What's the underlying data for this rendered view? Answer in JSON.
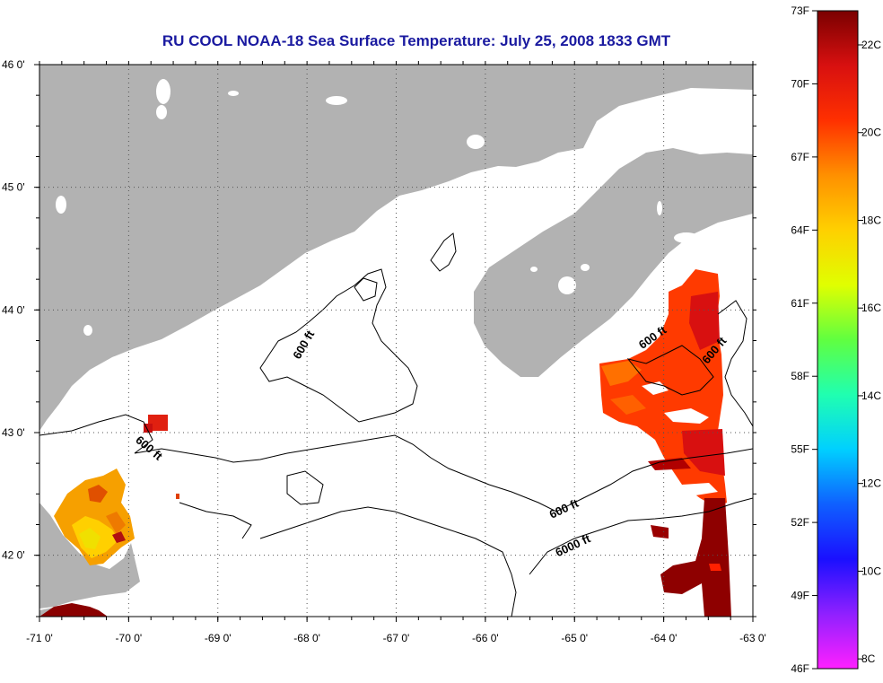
{
  "title": "RU COOL  NOAA-18  Sea Surface Temperature:  July 25, 2008 1833 GMT",
  "map": {
    "lon_range": [
      -71,
      -63
    ],
    "lat_range": [
      41.5,
      46
    ],
    "lon_ticks": [
      {
        "value": -71,
        "label": "-71 0'"
      },
      {
        "value": -70,
        "label": "-70 0'"
      },
      {
        "value": -69,
        "label": "-69 0'"
      },
      {
        "value": -68,
        "label": "-68 0'"
      },
      {
        "value": -67,
        "label": "-67 0'"
      },
      {
        "value": -66,
        "label": "-66 0'"
      },
      {
        "value": -65,
        "label": "-65 0'"
      },
      {
        "value": -64,
        "label": "-64 0'"
      },
      {
        "value": -63,
        "label": "-63 0'"
      }
    ],
    "lat_ticks": [
      {
        "value": 46,
        "label": "46 0'"
      },
      {
        "value": 45,
        "label": "45 0'"
      },
      {
        "value": 44,
        "label": "44 0'"
      },
      {
        "value": 43,
        "label": "43 0'"
      },
      {
        "value": 42,
        "label": "42 0'"
      }
    ],
    "contour_labels": [
      {
        "text": "600 ft",
        "lon": -68.0,
        "lat": 43.7
      },
      {
        "text": "600 ft",
        "lon": -69.8,
        "lat": 42.85
      },
      {
        "text": "600 ft",
        "lon": -64.1,
        "lat": 43.75
      },
      {
        "text": "600 ft",
        "lon": -63.4,
        "lat": 43.65
      },
      {
        "text": "600 ft",
        "lon": -65.1,
        "lat": 42.35
      },
      {
        "text": "6000 ft",
        "lon": -65.0,
        "lat": 42.05
      }
    ],
    "colors": {
      "land": "#b2b2b2",
      "water": "#ffffff",
      "grid": "#666666",
      "title": "#1a1aa0"
    }
  },
  "colorbar": {
    "f_labels": [
      "73F",
      "70F",
      "67F",
      "64F",
      "61F",
      "58F",
      "55F",
      "52F",
      "49F",
      "46F"
    ],
    "c_labels": [
      "22C",
      "20C",
      "18C",
      "16C",
      "14C",
      "12C",
      "10C",
      "8C"
    ],
    "stops": [
      "#ff20ff",
      "#8f20ff",
      "#1a10ff",
      "#0f60ff",
      "#00d0ff",
      "#20ffb0",
      "#60ff40",
      "#e0ff00",
      "#ffd000",
      "#ff9000",
      "#ff3000",
      "#d81010",
      "#7a0000"
    ]
  }
}
